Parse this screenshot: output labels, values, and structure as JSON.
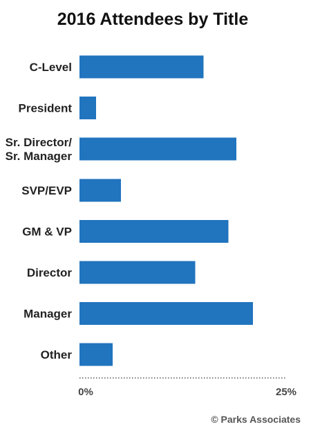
{
  "chart_data": {
    "type": "bar",
    "orientation": "horizontal",
    "title": "2016 Attendees by Title",
    "categories": [
      "C-Level",
      "President",
      "Sr. Director/ Sr. Manager",
      "SVP/EVP",
      "GM & VP",
      "Director",
      "Manager",
      "Other"
    ],
    "category_label_lines": [
      [
        "C-Level"
      ],
      [
        "President"
      ],
      [
        "Sr. Director/",
        "Sr. Manager"
      ],
      [
        "SVP/EVP"
      ],
      [
        "GM & VP"
      ],
      [
        "Director"
      ],
      [
        "Manager"
      ],
      [
        "Other"
      ]
    ],
    "values": [
      15,
      2,
      19,
      5,
      18,
      14,
      21,
      4
    ],
    "unit": "%",
    "xlim": [
      0,
      25
    ],
    "x_tick_labels": [
      "0%",
      "25%"
    ],
    "xlabel": "",
    "ylabel": "",
    "grid": false,
    "bar_color": "#2174BE"
  },
  "credit": "© Parks Associates"
}
